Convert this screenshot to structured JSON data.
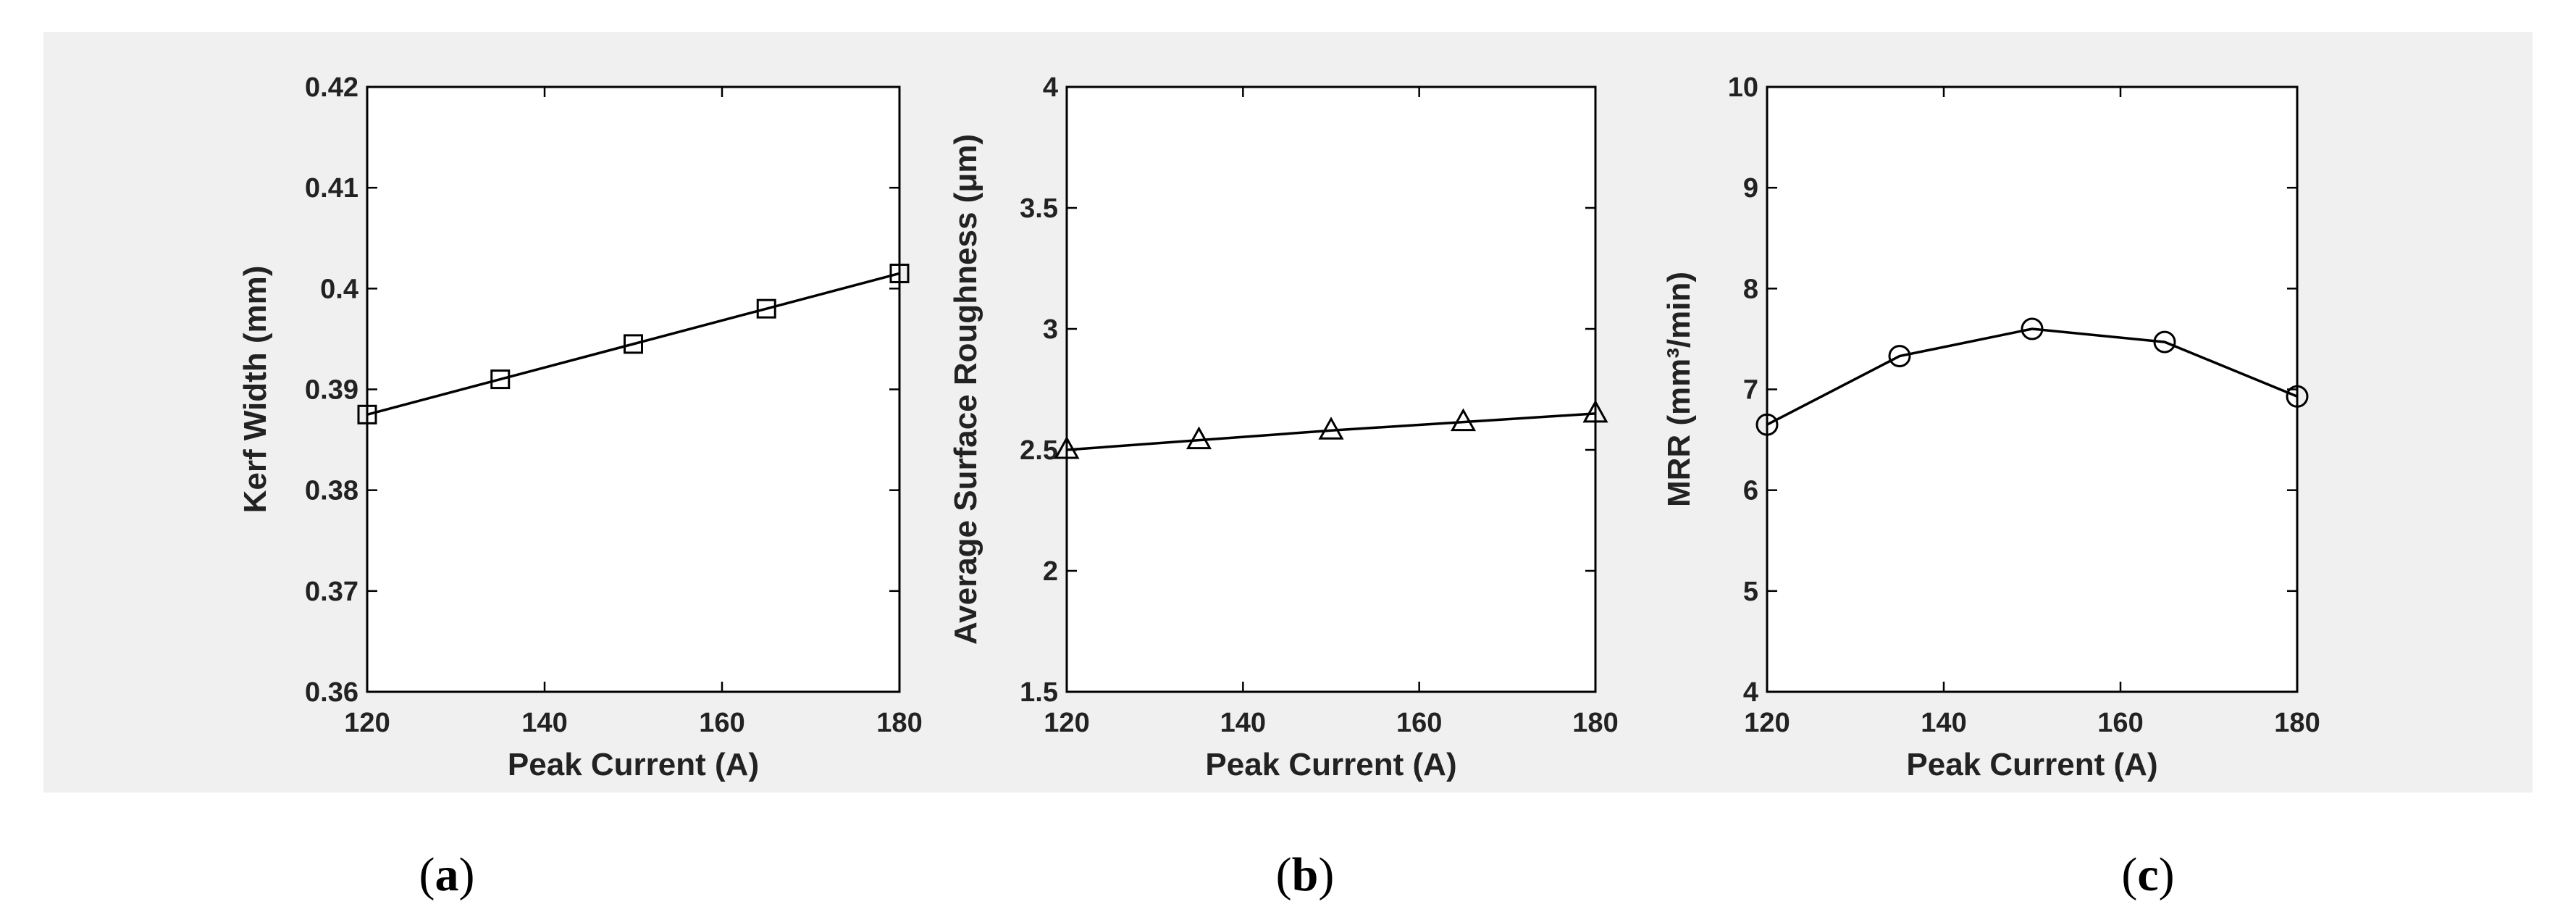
{
  "chart_data": [
    {
      "type": "line",
      "marker": "square",
      "xlabel": "Peak Current (A)",
      "ylabel": "Kerf Width (mm)",
      "xlim": [
        120,
        180
      ],
      "ylim": [
        0.36,
        0.42
      ],
      "xticks": [
        "120",
        "140",
        "160",
        "180"
      ],
      "yticks": [
        "0.36",
        "0.37",
        "0.38",
        "0.39",
        "0.4",
        "0.41",
        "0.42"
      ],
      "grid": false,
      "series": [
        {
          "x": [
            120,
            135,
            150,
            165,
            180
          ],
          "y": [
            0.3875,
            0.391,
            0.3945,
            0.398,
            0.4015
          ]
        }
      ]
    },
    {
      "type": "line",
      "marker": "triangle",
      "xlabel": "Peak Current (A)",
      "ylabel": "Average Surface Roughness  (μm)",
      "xlim": [
        120,
        180
      ],
      "ylim": [
        1.5,
        4
      ],
      "xticks": [
        "120",
        "140",
        "160",
        "180"
      ],
      "yticks": [
        "1.5",
        "2",
        "2.5",
        "3",
        "3.5",
        "4"
      ],
      "grid": false,
      "series": [
        {
          "x": [
            120,
            135,
            150,
            165,
            180
          ],
          "y": [
            2.5,
            2.54,
            2.58,
            2.615,
            2.65
          ]
        }
      ]
    },
    {
      "type": "line",
      "marker": "circle",
      "xlabel": "Peak Current (A)",
      "ylabel": "MRR (mm³/min)",
      "xlim": [
        120,
        180
      ],
      "ylim": [
        4,
        10
      ],
      "xticks": [
        "120",
        "140",
        "160",
        "180"
      ],
      "yticks": [
        "4",
        "5",
        "6",
        "7",
        "8",
        "9",
        "10"
      ],
      "grid": false,
      "series": [
        {
          "x": [
            120,
            135,
            150,
            165,
            180
          ],
          "y": [
            6.65,
            7.33,
            7.6,
            7.47,
            6.93
          ]
        }
      ]
    }
  ],
  "captions": [
    "(a)",
    "(b)",
    "(c)"
  ],
  "colors": {
    "panel_bg": "#f0f0f0",
    "axes_bg": "#ffffff",
    "line": "#000000"
  }
}
